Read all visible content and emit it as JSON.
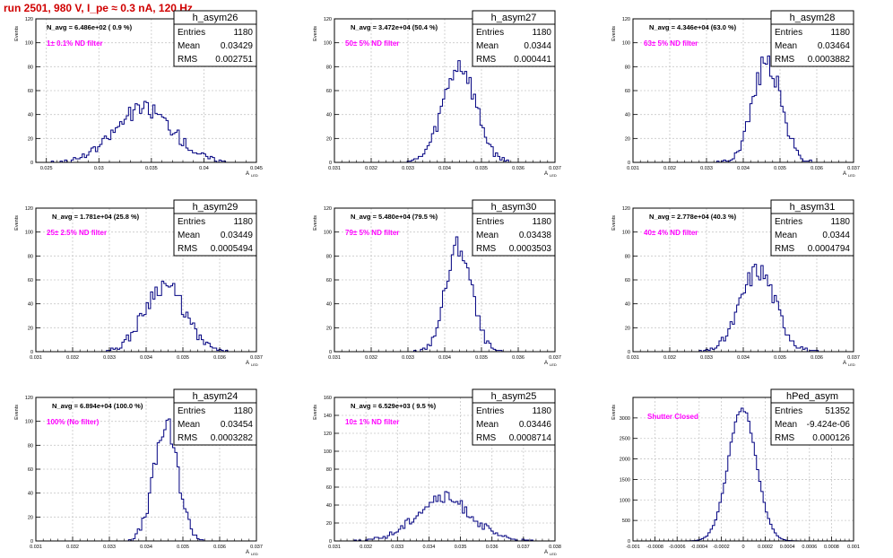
{
  "page_title": "run 2501,   980 V, I_pe ≈ 0.3 nA, 120 Hz",
  "colors": {
    "histogram_line": "#000080",
    "filter_label": "#ff00ff",
    "title_red": "#d00000",
    "grid": "#c8c8c8"
  },
  "chart_data": [
    {
      "type": "histogram",
      "name": "h_asym26",
      "nav_label": "N_avg = 6.486e+02 ( 0.9 %)",
      "filter_label": "1± 0.1% ND filter",
      "stats": {
        "Entries": "1180",
        "Mean": "0.03429",
        "RMS": "0.002751"
      },
      "ylabel": "Events",
      "xlabel": "A",
      "xlabel_sub": "LED",
      "xlim": [
        0.024,
        0.045
      ],
      "ylim": [
        0,
        120
      ],
      "xticks": [
        0.025,
        0.03,
        0.035,
        0.04,
        0.045
      ],
      "xtick_labels": [
        "0.025",
        "0.03",
        "0.035",
        "0.04",
        "0.045"
      ],
      "yticks": [
        0,
        20,
        40,
        60,
        80,
        100,
        120
      ],
      "dist": {
        "mean": 0.03429,
        "rms": 0.002751,
        "peak": 45,
        "bins": 100,
        "seed": 26
      }
    },
    {
      "type": "histogram",
      "name": "h_asym27",
      "nav_label": "N_avg = 3.472e+04 (50.4 %)",
      "filter_label": "50± 5% ND filter",
      "stats": {
        "Entries": "1180",
        "Mean": "0.0344",
        "RMS": "0.000441"
      },
      "ylabel": "Events",
      "xlabel": "A",
      "xlabel_sub": "LED",
      "xlim": [
        0.031,
        0.037
      ],
      "ylim": [
        0,
        120
      ],
      "xticks": [
        0.031,
        0.032,
        0.033,
        0.034,
        0.035,
        0.036,
        0.037
      ],
      "xtick_labels": [
        "0.031",
        "0.032",
        "0.033",
        "0.034",
        "0.035",
        "0.036",
        "0.037"
      ],
      "yticks": [
        0,
        20,
        40,
        60,
        80,
        100,
        120
      ],
      "dist": {
        "mean": 0.0344,
        "rms": 0.000441,
        "peak": 80,
        "bins": 100,
        "seed": 27
      }
    },
    {
      "type": "histogram",
      "name": "h_asym28",
      "nav_label": "N_avg = 4.346e+04 (63.0 %)",
      "filter_label": "63± 5% ND filter",
      "stats": {
        "Entries": "1180",
        "Mean": "0.03464",
        "RMS": "0.0003882"
      },
      "ylabel": "Events",
      "xlabel": "A",
      "xlabel_sub": "LED",
      "xlim": [
        0.031,
        0.037
      ],
      "ylim": [
        0,
        120
      ],
      "xticks": [
        0.031,
        0.032,
        0.033,
        0.034,
        0.035,
        0.036,
        0.037
      ],
      "xtick_labels": [
        "0.031",
        "0.032",
        "0.033",
        "0.034",
        "0.035",
        "0.036",
        "0.037"
      ],
      "yticks": [
        0,
        20,
        40,
        60,
        80,
        100,
        120
      ],
      "dist": {
        "mean": 0.03464,
        "rms": 0.0003882,
        "peak": 84,
        "bins": 100,
        "seed": 28
      }
    },
    {
      "type": "histogram",
      "name": "h_asym29",
      "nav_label": "N_avg = 1.781e+04 (25.8 %)",
      "filter_label": "25± 2.5% ND filter",
      "stats": {
        "Entries": "1180",
        "Mean": "0.03449",
        "RMS": "0.0005494"
      },
      "ylabel": "Events",
      "xlabel": "A",
      "xlabel_sub": "LED",
      "xlim": [
        0.031,
        0.037
      ],
      "ylim": [
        0,
        120
      ],
      "xticks": [
        0.031,
        0.032,
        0.033,
        0.034,
        0.035,
        0.036,
        0.037
      ],
      "xtick_labels": [
        "0.031",
        "0.032",
        "0.033",
        "0.034",
        "0.035",
        "0.036",
        "0.037"
      ],
      "yticks": [
        0,
        20,
        40,
        60,
        80,
        100,
        120
      ],
      "dist": {
        "mean": 0.03449,
        "rms": 0.0005494,
        "peak": 56,
        "bins": 100,
        "seed": 29
      }
    },
    {
      "type": "histogram",
      "name": "h_asym30",
      "nav_label": "N_avg = 5.480e+04 (79.5 %)",
      "filter_label": "79± 5% ND filter",
      "stats": {
        "Entries": "1180",
        "Mean": "0.03438",
        "RMS": "0.0003503"
      },
      "ylabel": "Events",
      "xlabel": "A",
      "xlabel_sub": "LED",
      "xlim": [
        0.031,
        0.037
      ],
      "ylim": [
        0,
        120
      ],
      "xticks": [
        0.031,
        0.032,
        0.033,
        0.034,
        0.035,
        0.036,
        0.037
      ],
      "xtick_labels": [
        "0.031",
        "0.032",
        "0.033",
        "0.034",
        "0.035",
        "0.036",
        "0.037"
      ],
      "yticks": [
        0,
        20,
        40,
        60,
        80,
        100,
        120
      ],
      "dist": {
        "mean": 0.03438,
        "rms": 0.0003503,
        "peak": 88,
        "bins": 100,
        "seed": 30
      }
    },
    {
      "type": "histogram",
      "name": "h_asym31",
      "nav_label": "N_avg = 2.778e+04 (40.3 %)",
      "filter_label": "40± 4% ND filter",
      "stats": {
        "Entries": "1180",
        "Mean": "0.0344",
        "RMS": "0.0004794"
      },
      "ylabel": "Events",
      "xlabel": "A",
      "xlabel_sub": "LED",
      "xlim": [
        0.031,
        0.037
      ],
      "ylim": [
        0,
        120
      ],
      "xticks": [
        0.031,
        0.032,
        0.033,
        0.034,
        0.035,
        0.036,
        0.037
      ],
      "xtick_labels": [
        "0.031",
        "0.032",
        "0.033",
        "0.034",
        "0.035",
        "0.036",
        "0.037"
      ],
      "yticks": [
        0,
        20,
        40,
        60,
        80,
        100,
        120
      ],
      "dist": {
        "mean": 0.0344,
        "rms": 0.0004794,
        "peak": 68,
        "bins": 100,
        "seed": 31
      }
    },
    {
      "type": "histogram",
      "name": "h_asym24",
      "nav_label": "N_avg = 6.894e+04 (100.0 %)",
      "filter_label": "100% (No filter)",
      "stats": {
        "Entries": "1180",
        "Mean": "0.03454",
        "RMS": "0.0003282"
      },
      "ylabel": "Events",
      "xlabel": "A",
      "xlabel_sub": "LED",
      "xlim": [
        0.031,
        0.037
      ],
      "ylim": [
        0,
        120
      ],
      "xticks": [
        0.031,
        0.032,
        0.033,
        0.034,
        0.035,
        0.036,
        0.037
      ],
      "xtick_labels": [
        "0.031",
        "0.032",
        "0.033",
        "0.034",
        "0.035",
        "0.036",
        "0.037"
      ],
      "yticks": [
        0,
        20,
        40,
        60,
        80,
        100,
        120
      ],
      "dist": {
        "mean": 0.03454,
        "rms": 0.0003282,
        "peak": 95,
        "bins": 100,
        "seed": 24
      }
    },
    {
      "type": "histogram",
      "name": "h_asym25",
      "nav_label": "N_avg = 6.529e+03 ( 9.5 %)",
      "filter_label": "10± 1% ND filter",
      "stats": {
        "Entries": "1180",
        "Mean": "0.03446",
        "RMS": "0.0008714"
      },
      "ylabel": "Events",
      "xlabel": "A",
      "xlabel_sub": "LED",
      "xlim": [
        0.031,
        0.038
      ],
      "ylim": [
        0,
        160
      ],
      "xticks": [
        0.031,
        0.032,
        0.033,
        0.034,
        0.035,
        0.036,
        0.037,
        0.038
      ],
      "xtick_labels": [
        "0.031",
        "0.032",
        "0.033",
        "0.034",
        "0.035",
        "0.036",
        "0.037",
        "0.038"
      ],
      "yticks": [
        0,
        20,
        40,
        60,
        80,
        100,
        120,
        140,
        160
      ],
      "dist": {
        "mean": 0.03446,
        "rms": 0.0008714,
        "peak": 48,
        "bins": 100,
        "seed": 25
      }
    },
    {
      "type": "histogram",
      "name": "hPed_asym",
      "nav_label": "",
      "filter_label": "Shutter Closed",
      "stats": {
        "Entries": "51352",
        "Mean": "-9.424e-06",
        "RMS": "0.000126"
      },
      "ylabel": "Events",
      "xlabel": "",
      "xlabel_sub": "",
      "xlim": [
        -0.001,
        0.001
      ],
      "ylim": [
        0,
        3500
      ],
      "xticks": [
        -0.001,
        -0.0008,
        -0.0006,
        -0.0004,
        -0.0002,
        0,
        0.0002,
        0.0004,
        0.0006,
        0.0008,
        0.001
      ],
      "xtick_labels": [
        "-0.001",
        "-0.0008",
        "-0.0006",
        "-0.0004",
        "-0.0002",
        "0",
        "0.0002",
        "0.0004",
        "0.0006",
        "0.0008",
        "0.001"
      ],
      "yticks": [
        0,
        500,
        1000,
        1500,
        2000,
        2500,
        3000
      ],
      "dist": {
        "mean": -9.424e-06,
        "rms": 0.000126,
        "peak": 3250,
        "bins": 100,
        "seed": 99
      }
    }
  ]
}
